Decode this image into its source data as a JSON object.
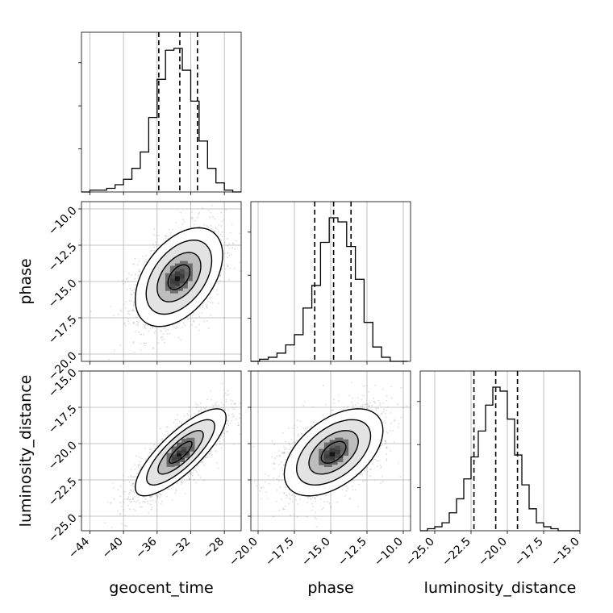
{
  "chart_data": {
    "type": "corner",
    "parameters": [
      "geocent_time",
      "phase",
      "luminosity_distance"
    ],
    "axis_labels": {
      "x": [
        "geocent_time",
        "phase",
        "luminosity_distance"
      ],
      "y": [
        "",
        "phase",
        "luminosity_distance"
      ]
    },
    "ranges": {
      "geocent_time": [
        -45.0,
        -26.0
      ],
      "phase": [
        -20.5,
        -9.5
      ],
      "luminosity_distance": [
        -26.0,
        -15.0
      ]
    },
    "ticks": {
      "geocent_time": [
        -44,
        -40,
        -36,
        -32,
        -28
      ],
      "phase": [
        -20.0,
        -17.5,
        -15.0,
        -12.5,
        -10.0
      ],
      "luminosity_distance": [
        -25.0,
        -22.5,
        -20.0,
        -17.5,
        -15.0
      ]
    },
    "tick_labels": {
      "geocent_time": [
        "−44",
        "−40",
        "−36",
        "−32",
        "−28"
      ],
      "phase": [
        "−20.0",
        "−17.5",
        "−15.0",
        "−12.5",
        "−10.0"
      ],
      "luminosity_distance": [
        "−25.0",
        "−22.5",
        "−20.0",
        "−17.5",
        "−15.0"
      ]
    },
    "quantiles": {
      "geocent_time": [
        -35.8,
        -33.3,
        -31.2
      ],
      "phase": [
        -16.1,
        -14.8,
        -13.6
      ],
      "luminosity_distance": [
        -22.3,
        -20.8,
        -19.3
      ]
    },
    "histograms": {
      "geocent_time": {
        "bins": [
          -45.0,
          -44.0,
          -43.0,
          -42.0,
          -41.0,
          -40.0,
          -39.0,
          -38.0,
          -37.0,
          -36.0,
          -35.0,
          -34.0,
          -33.0,
          -32.0,
          -31.0,
          -30.0,
          -29.0,
          -28.0,
          -27.0,
          -26.0
        ],
        "counts": [
          0,
          1,
          1,
          2,
          4,
          7,
          13,
          22,
          41,
          62,
          78,
          79,
          67,
          50,
          28,
          13,
          5,
          1,
          0
        ]
      },
      "phase": {
        "bins": [
          -20.5,
          -19.9,
          -19.3,
          -18.7,
          -18.1,
          -17.5,
          -16.9,
          -16.3,
          -15.7,
          -15.1,
          -14.5,
          -13.9,
          -13.3,
          -12.7,
          -12.1,
          -11.5,
          -10.9,
          -10.3,
          -9.7
        ],
        "counts": [
          0,
          1,
          2,
          4,
          8,
          13,
          26,
          37,
          58,
          70,
          68,
          56,
          40,
          19,
          7,
          2,
          0,
          0
        ]
      },
      "luminosity_distance": {
        "bins": [
          -26.0,
          -25.5,
          -25.0,
          -24.5,
          -24.0,
          -23.5,
          -23.0,
          -22.5,
          -22.0,
          -21.5,
          -21.0,
          -20.5,
          -20.0,
          -19.5,
          -19.0,
          -18.5,
          -18.0,
          -17.5,
          -17.0,
          -16.5,
          -16.0,
          -15.5,
          -15.0
        ],
        "counts": [
          0,
          1,
          2,
          4,
          9,
          16,
          26,
          37,
          50,
          63,
          72,
          70,
          56,
          38,
          23,
          11,
          4,
          2,
          1,
          0,
          0,
          0
        ]
      }
    },
    "pairs": [
      {
        "x": "geocent_time",
        "y": "phase",
        "mean": [
          -33.4,
          -14.7
        ],
        "sd": [
          2.6,
          1.7
        ],
        "corr": 0.45
      },
      {
        "x": "geocent_time",
        "y": "luminosity_distance",
        "mean": [
          -33.2,
          -20.6
        ],
        "sd": [
          2.7,
          1.5
        ],
        "corr": 0.8
      },
      {
        "x": "phase",
        "y": "luminosity_distance",
        "mean": [
          -14.8,
          -20.6
        ],
        "sd": [
          1.7,
          1.5
        ],
        "corr": 0.5
      }
    ],
    "contour_levels_sigma": [
      0.5,
      1.0,
      1.5,
      2.0
    ],
    "grid": true
  }
}
